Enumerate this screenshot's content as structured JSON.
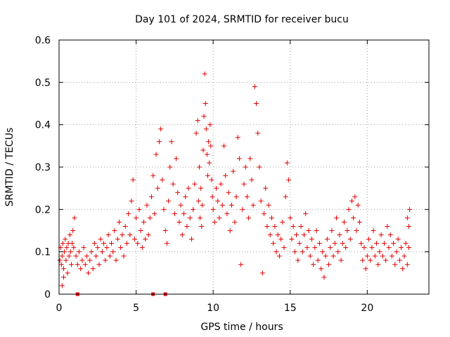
{
  "chart_data": {
    "type": "scatter",
    "title": "Day 101 of 2024, SRMTID for receiver bucu",
    "xlabel": "GPS time / hours",
    "ylabel": "SRMTID / TECUs",
    "xlim": [
      0,
      24
    ],
    "ylim": [
      0,
      0.6
    ],
    "xticks": [
      0,
      5,
      10,
      15,
      20
    ],
    "yticks": [
      0,
      0.1,
      0.2,
      0.3,
      0.4,
      0.5,
      0.6
    ],
    "xtick_labels": [
      "0",
      "5",
      "10",
      "15",
      "20"
    ],
    "ytick_labels": [
      "0",
      "0.1",
      "0.2",
      "0.3",
      "0.4",
      "0.5",
      "0.6"
    ],
    "grid": true,
    "marker": "+",
    "color": "#e00000",
    "series": [
      {
        "name": "SRMTID",
        "points": [
          [
            0.05,
            0.08
          ],
          [
            0.1,
            0.11
          ],
          [
            0.15,
            0.07
          ],
          [
            0.2,
            0.09
          ],
          [
            0.25,
            0.12
          ],
          [
            0.3,
            0.06
          ],
          [
            0.35,
            0.1
          ],
          [
            0.4,
            0.13
          ],
          [
            0.45,
            0.08
          ],
          [
            0.5,
            0.11
          ],
          [
            0.55,
            0.05
          ],
          [
            0.6,
            0.12
          ],
          [
            0.65,
            0.09
          ],
          [
            0.7,
            0.14
          ],
          [
            0.75,
            0.1
          ],
          [
            0.8,
            0.07
          ],
          [
            0.85,
            0.12
          ],
          [
            0.9,
            0.15
          ],
          [
            0.95,
            0.11
          ],
          [
            1.0,
            0.18
          ],
          [
            0.2,
            0.02
          ],
          [
            0.3,
            0.04
          ],
          [
            1.1,
            0.09
          ],
          [
            1.2,
            0.07
          ],
          [
            1.3,
            0.1
          ],
          [
            1.4,
            0.06
          ],
          [
            1.5,
            0.08
          ],
          [
            1.6,
            0.11
          ],
          [
            1.7,
            0.07
          ],
          [
            1.8,
            0.09
          ],
          [
            1.9,
            0.05
          ],
          [
            2.0,
            0.08
          ],
          [
            2.1,
            0.1
          ],
          [
            2.2,
            0.06
          ],
          [
            2.3,
            0.12
          ],
          [
            2.4,
            0.09
          ],
          [
            2.5,
            0.11
          ],
          [
            2.6,
            0.07
          ],
          [
            2.7,
            0.13
          ],
          [
            2.8,
            0.1
          ],
          [
            2.9,
            0.12
          ],
          [
            3.0,
            0.08
          ],
          [
            3.1,
            0.11
          ],
          [
            3.2,
            0.14
          ],
          [
            3.3,
            0.09
          ],
          [
            3.4,
            0.12
          ],
          [
            3.5,
            0.1
          ],
          [
            3.6,
            0.15
          ],
          [
            3.7,
            0.08
          ],
          [
            3.8,
            0.13
          ],
          [
            3.9,
            0.17
          ],
          [
            4.0,
            0.11
          ],
          [
            4.1,
            0.14
          ],
          [
            4.2,
            0.09
          ],
          [
            4.3,
            0.16
          ],
          [
            4.4,
            0.12
          ],
          [
            4.5,
            0.19
          ],
          [
            4.6,
            0.14
          ],
          [
            4.7,
            0.22
          ],
          [
            4.8,
            0.27
          ],
          [
            4.9,
            0.13
          ],
          [
            5.0,
            0.18
          ],
          [
            5.1,
            0.12
          ],
          [
            5.2,
            0.2
          ],
          [
            5.3,
            0.15
          ],
          [
            5.4,
            0.11
          ],
          [
            5.5,
            0.17
          ],
          [
            5.6,
            0.13
          ],
          [
            5.7,
            0.21
          ],
          [
            5.8,
            0.14
          ],
          [
            5.9,
            0.18
          ],
          [
            6.0,
            0.23
          ],
          [
            6.1,
            0.28
          ],
          [
            6.2,
            0.19
          ],
          [
            6.3,
            0.33
          ],
          [
            6.4,
            0.25
          ],
          [
            6.5,
            0.36
          ],
          [
            6.6,
            0.39
          ],
          [
            6.7,
            0.27
          ],
          [
            6.8,
            0.2
          ],
          [
            6.9,
            0.15
          ],
          [
            7.0,
            0.12
          ],
          [
            7.1,
            0.22
          ],
          [
            7.2,
            0.3
          ],
          [
            7.3,
            0.36
          ],
          [
            7.4,
            0.26
          ],
          [
            7.5,
            0.19
          ],
          [
            7.6,
            0.32
          ],
          [
            7.7,
            0.24
          ],
          [
            7.8,
            0.17
          ],
          [
            7.9,
            0.21
          ],
          [
            8.0,
            0.14
          ],
          [
            8.1,
            0.19
          ],
          [
            8.2,
            0.23
          ],
          [
            8.3,
            0.16
          ],
          [
            8.4,
            0.25
          ],
          [
            8.5,
            0.18
          ],
          [
            8.6,
            0.13
          ],
          [
            8.7,
            0.2
          ],
          [
            8.8,
            0.26
          ],
          [
            8.9,
            0.38
          ],
          [
            9.0,
            0.41
          ],
          [
            9.05,
            0.22
          ],
          [
            9.1,
            0.3
          ],
          [
            9.15,
            0.18
          ],
          [
            9.2,
            0.25
          ],
          [
            9.25,
            0.16
          ],
          [
            9.3,
            0.21
          ],
          [
            9.35,
            0.34
          ],
          [
            9.4,
            0.42
          ],
          [
            9.45,
            0.52
          ],
          [
            9.5,
            0.45
          ],
          [
            9.55,
            0.39
          ],
          [
            9.6,
            0.33
          ],
          [
            9.65,
            0.28
          ],
          [
            9.7,
            0.36
          ],
          [
            9.75,
            0.31
          ],
          [
            9.8,
            0.4
          ],
          [
            9.85,
            0.35
          ],
          [
            9.9,
            0.27
          ],
          [
            9.95,
            0.23
          ],
          [
            10.0,
            0.2
          ],
          [
            10.1,
            0.17
          ],
          [
            10.2,
            0.25
          ],
          [
            10.3,
            0.22
          ],
          [
            10.4,
            0.18
          ],
          [
            10.5,
            0.26
          ],
          [
            10.6,
            0.21
          ],
          [
            10.7,
            0.35
          ],
          [
            10.8,
            0.28
          ],
          [
            10.9,
            0.19
          ],
          [
            11.0,
            0.24
          ],
          [
            11.1,
            0.15
          ],
          [
            11.2,
            0.21
          ],
          [
            11.3,
            0.29
          ],
          [
            11.4,
            0.17
          ],
          [
            11.5,
            0.23
          ],
          [
            11.6,
            0.37
          ],
          [
            11.7,
            0.32
          ],
          [
            11.8,
            0.07
          ],
          [
            11.9,
            0.2
          ],
          [
            12.0,
            0.26
          ],
          [
            12.1,
            0.3
          ],
          [
            12.2,
            0.23
          ],
          [
            12.3,
            0.18
          ],
          [
            12.4,
            0.32
          ],
          [
            12.5,
            0.27
          ],
          [
            12.6,
            0.21
          ],
          [
            12.7,
            0.49
          ],
          [
            12.8,
            0.45
          ],
          [
            12.9,
            0.38
          ],
          [
            13.0,
            0.3
          ],
          [
            13.1,
            0.22
          ],
          [
            13.2,
            0.05
          ],
          [
            13.3,
            0.19
          ],
          [
            13.4,
            0.25
          ],
          [
            13.5,
            0.16
          ],
          [
            13.6,
            0.21
          ],
          [
            13.7,
            0.14
          ],
          [
            13.8,
            0.18
          ],
          [
            13.9,
            0.12
          ],
          [
            14.0,
            0.16
          ],
          [
            14.1,
            0.1
          ],
          [
            14.2,
            0.14
          ],
          [
            14.3,
            0.09
          ],
          [
            14.4,
            0.13
          ],
          [
            14.5,
            0.17
          ],
          [
            14.6,
            0.11
          ],
          [
            14.7,
            0.23
          ],
          [
            14.8,
            0.31
          ],
          [
            14.9,
            0.27
          ],
          [
            15.0,
            0.18
          ],
          [
            15.1,
            0.13
          ],
          [
            15.2,
            0.16
          ],
          [
            15.3,
            0.1
          ],
          [
            15.4,
            0.14
          ],
          [
            15.5,
            0.08
          ],
          [
            15.6,
            0.12
          ],
          [
            15.7,
            0.16
          ],
          [
            15.8,
            0.1
          ],
          [
            15.9,
            0.14
          ],
          [
            16.0,
            0.19
          ],
          [
            16.1,
            0.11
          ],
          [
            16.2,
            0.15
          ],
          [
            16.3,
            0.09
          ],
          [
            16.4,
            0.13
          ],
          [
            16.5,
            0.07
          ],
          [
            16.6,
            0.11
          ],
          [
            16.7,
            0.15
          ],
          [
            16.8,
            0.08
          ],
          [
            16.9,
            0.12
          ],
          [
            17.0,
            0.06
          ],
          [
            17.1,
            0.1
          ],
          [
            17.2,
            0.04
          ],
          [
            17.3,
            0.09
          ],
          [
            17.4,
            0.13
          ],
          [
            17.5,
            0.07
          ],
          [
            17.6,
            0.11
          ],
          [
            17.7,
            0.15
          ],
          [
            17.8,
            0.09
          ],
          [
            17.9,
            0.12
          ],
          [
            18.0,
            0.18
          ],
          [
            18.1,
            0.1
          ],
          [
            18.2,
            0.14
          ],
          [
            18.3,
            0.08
          ],
          [
            18.4,
            0.12
          ],
          [
            18.5,
            0.17
          ],
          [
            18.6,
            0.11
          ],
          [
            18.7,
            0.15
          ],
          [
            18.8,
            0.2
          ],
          [
            18.9,
            0.13
          ],
          [
            19.0,
            0.22
          ],
          [
            19.1,
            0.18
          ],
          [
            19.2,
            0.23
          ],
          [
            19.3,
            0.15
          ],
          [
            19.4,
            0.21
          ],
          [
            19.5,
            0.17
          ],
          [
            19.6,
            0.12
          ],
          [
            19.7,
            0.08
          ],
          [
            19.8,
            0.11
          ],
          [
            19.9,
            0.06
          ],
          [
            20.0,
            0.09
          ],
          [
            20.1,
            0.13
          ],
          [
            20.2,
            0.08
          ],
          [
            20.3,
            0.11
          ],
          [
            20.4,
            0.15
          ],
          [
            20.5,
            0.09
          ],
          [
            20.6,
            0.12
          ],
          [
            20.7,
            0.07
          ],
          [
            20.8,
            0.1
          ],
          [
            20.9,
            0.14
          ],
          [
            21.0,
            0.09
          ],
          [
            21.1,
            0.12
          ],
          [
            21.2,
            0.08
          ],
          [
            21.3,
            0.16
          ],
          [
            21.4,
            0.11
          ],
          [
            21.5,
            0.14
          ],
          [
            21.6,
            0.09
          ],
          [
            21.7,
            0.12
          ],
          [
            21.8,
            0.07
          ],
          [
            21.9,
            0.1
          ],
          [
            22.0,
            0.13
          ],
          [
            22.1,
            0.08
          ],
          [
            22.2,
            0.11
          ],
          [
            22.3,
            0.06
          ],
          [
            22.4,
            0.09
          ],
          [
            22.5,
            0.12
          ],
          [
            22.6,
            0.07
          ],
          [
            22.7,
            0.16
          ],
          [
            22.75,
            0.2
          ],
          [
            22.6,
            0.18
          ],
          [
            22.7,
            0.11
          ]
        ]
      }
    ],
    "x_axis_markers": [
      1.2,
      6.1,
      6.9
    ]
  }
}
